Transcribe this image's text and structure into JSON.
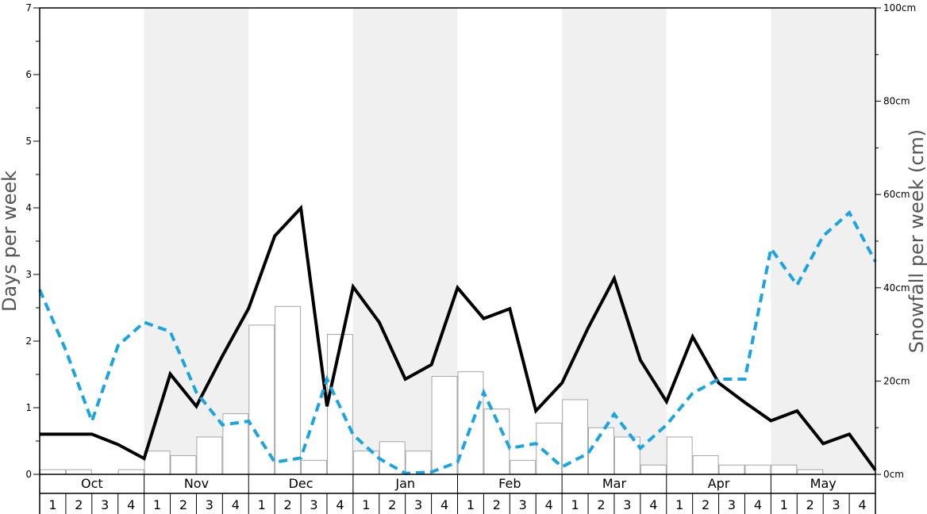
{
  "chart_data": {
    "type": "bar+line",
    "months": [
      "Oct",
      "Nov",
      "Dec",
      "Jan",
      "Feb",
      "Mar",
      "Apr",
      "May"
    ],
    "week_labels": [
      "1",
      "2",
      "3",
      "4"
    ],
    "y_left": {
      "label": "Days per week",
      "range": [
        0,
        7
      ],
      "ticks": [
        "0",
        "1",
        "2",
        "3",
        "4",
        "5",
        "6",
        "7"
      ]
    },
    "y_right": {
      "label": "Snowfall per week (cm)",
      "range": [
        0,
        100
      ],
      "ticks": [
        "0cm",
        "20cm",
        "40cm",
        "60cm",
        "80cm",
        "100cm"
      ]
    },
    "shaded_months": [
      "Nov",
      "Jan",
      "Mar",
      "May"
    ],
    "series": [
      {
        "kind": "bar",
        "axis": "left",
        "values": [
          0.07,
          0.07,
          0,
          0.07,
          0.35,
          0.28,
          0.56,
          0.91,
          2.24,
          2.52,
          0.21,
          2.1,
          0.35,
          0.49,
          0.35,
          1.47,
          1.54,
          0.98,
          0.21,
          0.77,
          1.12,
          0.7,
          0.56,
          0.14,
          0.56,
          0.28,
          0.14,
          0.14,
          0.14,
          0.07,
          0,
          0
        ]
      },
      {
        "kind": "line",
        "style": "solid",
        "color": "#000000",
        "axis": "right",
        "values": [
          8.6,
          8.6,
          8.6,
          6.4,
          3.4,
          21.5,
          14.6,
          25.4,
          35.6,
          51.1,
          57.1,
          14.6,
          40.2,
          32.6,
          20.4,
          23.5,
          40,
          33.4,
          35.5,
          13.6,
          19.6,
          31.4,
          42,
          24.5,
          15.6,
          29.5,
          19.6,
          15.4,
          11.5,
          13.6,
          6.6,
          8.6,
          0.9
        ]
      },
      {
        "kind": "line",
        "style": "dashed",
        "color": "#1ba4e3",
        "axis": "right",
        "values": [
          39.6,
          26.6,
          11.4,
          27.6,
          32.6,
          30.6,
          17.6,
          10.6,
          11.4,
          2.6,
          3.5,
          20.4,
          8.5,
          3.4,
          0.2,
          0.5,
          2.6,
          17.6,
          5.6,
          6.6,
          1.6,
          4.5,
          12.9,
          5.6,
          10.6,
          17.4,
          20.4,
          20.4,
          48.4,
          40.6,
          51.1,
          56.1,
          45.6
        ]
      }
    ]
  }
}
